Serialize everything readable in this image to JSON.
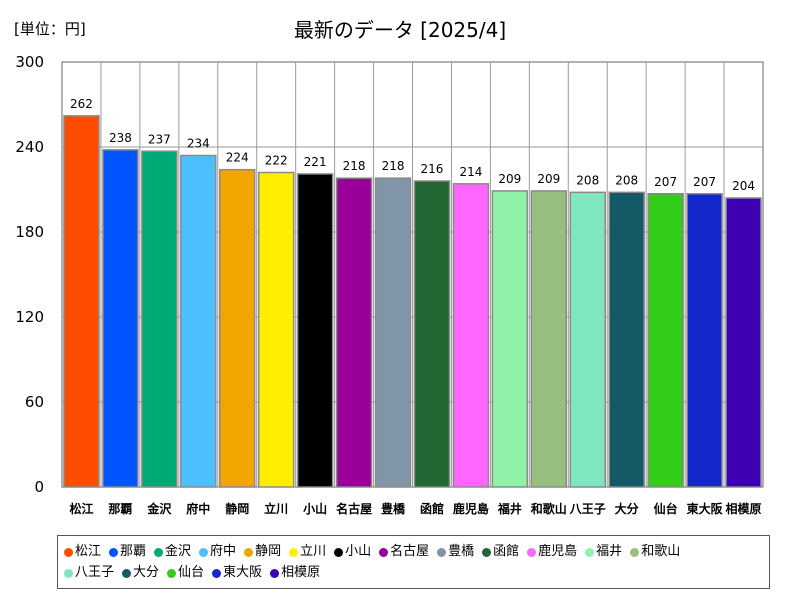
{
  "chart_data": {
    "type": "bar",
    "title": "最新のデータ [2025/4]",
    "unit_label": "[単位：円]",
    "xlabel": "",
    "ylabel": "",
    "ylim": [
      0,
      300
    ],
    "yticks": [
      0,
      60,
      120,
      180,
      240,
      300
    ],
    "grid": true,
    "legend_position": "bottom",
    "categories": [
      "松江",
      "那覇",
      "金沢",
      "府中",
      "静岡",
      "立川",
      "小山",
      "名古屋",
      "豊橋",
      "函館",
      "鹿児島",
      "福井",
      "和歌山",
      "八王子",
      "大分",
      "仙台",
      "東大阪",
      "相模原"
    ],
    "values": [
      262,
      238,
      237,
      234,
      224,
      222,
      221,
      218,
      218,
      216,
      214,
      209,
      209,
      208,
      208,
      207,
      207,
      204
    ],
    "colors": [
      "#ff4c00",
      "#0055ff",
      "#00aa77",
      "#4dbfff",
      "#f2a500",
      "#ffee00",
      "#000000",
      "#990099",
      "#8096a6",
      "#226633",
      "#ff66ff",
      "#90f2a8",
      "#99bf80",
      "#80e6c0",
      "#145a66",
      "#33cc1a",
      "#1427cc",
      "#3d00b3"
    ]
  }
}
